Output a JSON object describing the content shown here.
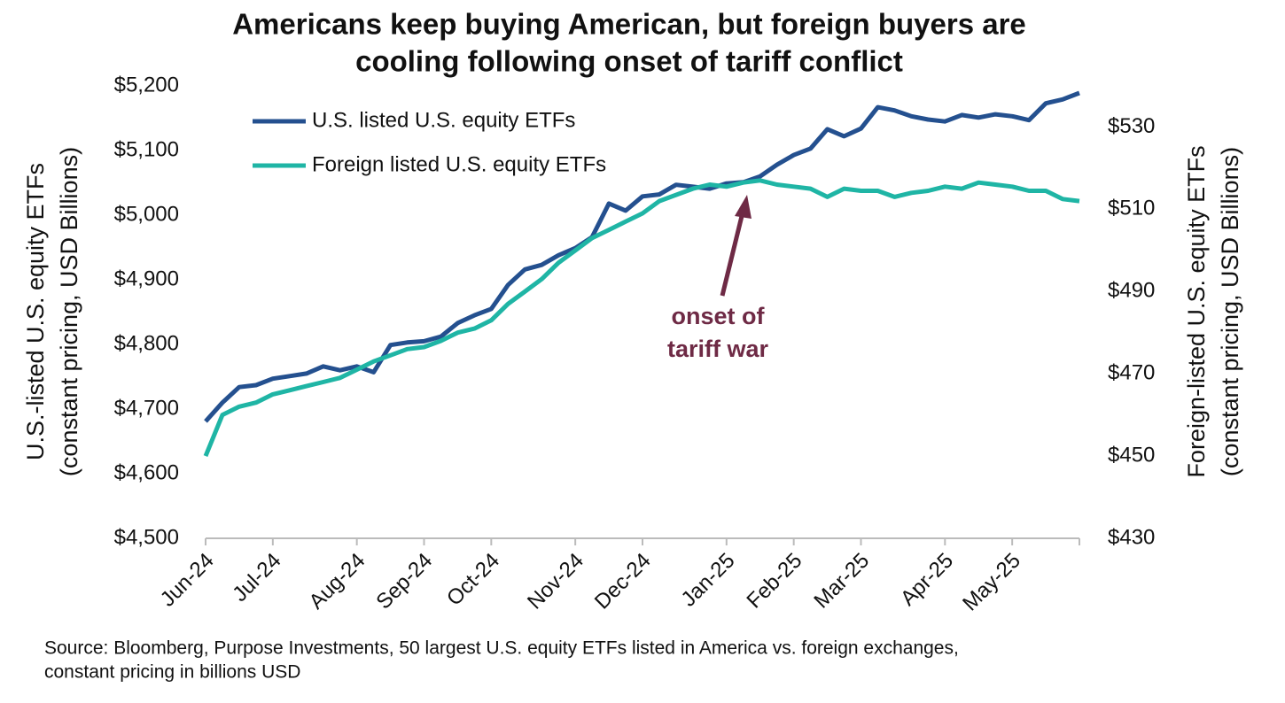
{
  "chart_data": {
    "type": "line",
    "title": [
      "Americans keep buying American, but foreign buyers are",
      "cooling following onset of tariff conflict"
    ],
    "ylabel": [
      "U.S.-listed U.S. equity ETFs",
      "(constant pricing, USD Billions)"
    ],
    "y2label": [
      "Foreign-listed U.S. equity ETFs",
      "(constant pricing, USD Billions)"
    ],
    "annotation": [
      "onset of",
      "tariff war"
    ],
    "source": [
      "Source: Bloomberg, Purpose Investments, 50 largest U.S. equity ETFs listed in America vs. foreign exchanges,",
      "constant pricing in billions USD"
    ],
    "categories": [
      "Jun-24",
      null,
      null,
      null,
      "Jul-24",
      null,
      null,
      null,
      null,
      "Aug-24",
      null,
      null,
      null,
      "Sep-24",
      null,
      null,
      null,
      "Oct-24",
      null,
      null,
      null,
      null,
      "Nov-24",
      null,
      null,
      null,
      "Dec-24",
      null,
      null,
      null,
      null,
      "Jan-25",
      null,
      null,
      null,
      "Feb-25",
      null,
      null,
      null,
      "Mar-25",
      null,
      null,
      null,
      null,
      "Apr-25",
      null,
      null,
      null,
      "May-25",
      null,
      null,
      null,
      null
    ],
    "ylim": [
      4500,
      5200
    ],
    "yticks": [
      {
        "value": 4500,
        "label": "$4,500"
      },
      {
        "value": 4600,
        "label": "$4,600"
      },
      {
        "value": 4700,
        "label": "$4,700"
      },
      {
        "value": 4800,
        "label": "$4,800"
      },
      {
        "value": 4900,
        "label": "$4,900"
      },
      {
        "value": 5000,
        "label": "$5,000"
      },
      {
        "value": 5100,
        "label": "$5,100"
      },
      {
        "value": 5200,
        "label": "$5,200"
      }
    ],
    "y2lim": [
      430,
      540
    ],
    "y2ticks": [
      {
        "value": 430,
        "label": "$430"
      },
      {
        "value": 450,
        "label": "$450"
      },
      {
        "value": 470,
        "label": "$470"
      },
      {
        "value": 490,
        "label": "$490"
      },
      {
        "value": 510,
        "label": "$510"
      },
      {
        "value": 530,
        "label": "$530"
      }
    ],
    "legend": "top-left",
    "series": [
      {
        "name": "U.S. listed U.S. equity ETFs",
        "color": "#24508f",
        "values": [
          4681,
          4710,
          4734,
          4737,
          4747,
          4751,
          4755,
          4766,
          4760,
          4766,
          4757,
          4799,
          4803,
          4805,
          4812,
          4833,
          4845,
          4855,
          4892,
          4916,
          4923,
          4938,
          4949,
          4966,
          5018,
          5007,
          5029,
          5032,
          5047,
          5044,
          5041,
          5049,
          5051,
          5060,
          5078,
          5093,
          5103,
          5133,
          5122,
          5134,
          5167,
          5162,
          5153,
          5148,
          5145,
          5155,
          5151,
          5156,
          5153,
          5147,
          5173,
          5179,
          5189
        ]
      },
      {
        "name": "Foreign listed U.S. equity ETFs",
        "color": "#1fb5a5",
        "axis": "y2",
        "values": [
          450,
          460,
          462,
          463,
          465,
          466,
          467,
          468,
          469,
          471,
          473,
          474.5,
          476,
          476.5,
          478,
          480,
          481,
          483,
          487,
          490,
          493,
          497,
          500,
          503,
          505,
          507,
          509,
          512,
          513.5,
          515,
          516,
          515.5,
          516.5,
          517,
          516,
          515.5,
          515,
          513,
          515,
          514.5,
          514.5,
          513,
          514,
          514.5,
          515.5,
          515,
          516.5,
          516,
          515.5,
          514.5,
          514.5,
          512.5,
          512
        ]
      }
    ]
  }
}
